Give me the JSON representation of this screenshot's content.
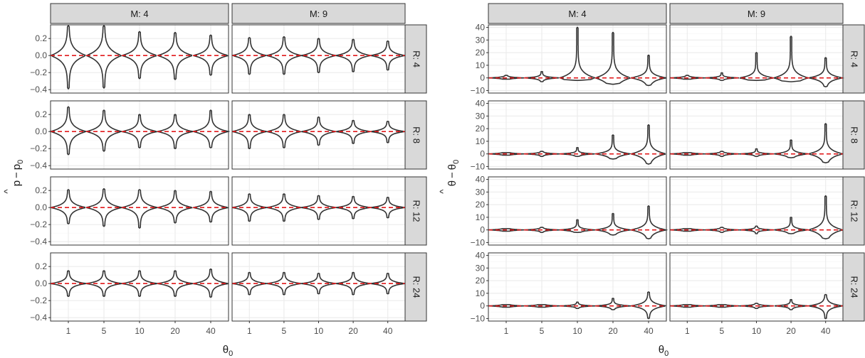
{
  "chart_data": [
    {
      "type": "violin",
      "facet_cols": [
        "M: 4",
        "M: 9"
      ],
      "facet_rows": [
        "R: 4",
        "R: 8",
        "R: 12",
        "R: 24"
      ],
      "xlabel_base": "θ",
      "xlabel_sub": "0",
      "ylabel_main": "p",
      "ylabel_hat": "^",
      "ylabel_sub": "0",
      "ylabel_op": "−",
      "categories": [
        "1",
        "5",
        "10",
        "20",
        "40"
      ],
      "yticks": [
        "0.2",
        "0.0",
        "−0.2",
        "−0.4"
      ],
      "ytick_values": [
        0.2,
        0.0,
        -0.2,
        -0.4
      ],
      "ylim": [
        -0.44,
        0.36
      ],
      "reference_line": 0,
      "colors": {
        "violin": "#333333",
        "reference": "#e0191b",
        "strip": "#d9d9d9",
        "grid": "#ebebeb"
      },
      "violins": [
        [
          [
            [
              -0.39,
              0.35
            ],
            [
              -0.38,
              0.35
            ],
            [
              -0.27,
              0.28
            ],
            [
              -0.28,
              0.27
            ],
            [
              -0.23,
              0.24
            ]
          ],
          [
            [
              -0.22,
              0.21
            ],
            [
              -0.22,
              0.22
            ],
            [
              -0.2,
              0.2
            ],
            [
              -0.19,
              0.19
            ],
            [
              -0.17,
              0.17
            ]
          ]
        ],
        [
          [
            [
              -0.27,
              0.29
            ],
            [
              -0.23,
              0.25
            ],
            [
              -0.19,
              0.2
            ],
            [
              -0.2,
              0.2
            ],
            [
              -0.19,
              0.25
            ]
          ],
          [
            [
              -0.2,
              0.2
            ],
            [
              -0.19,
              0.2
            ],
            [
              -0.16,
              0.17
            ],
            [
              -0.14,
              0.13
            ],
            [
              -0.13,
              0.12
            ]
          ]
        ],
        [
          [
            [
              -0.19,
              0.21
            ],
            [
              -0.22,
              0.22
            ],
            [
              -0.24,
              0.21
            ],
            [
              -0.18,
              0.2
            ],
            [
              -0.17,
              0.19
            ]
          ],
          [
            [
              -0.16,
              0.16
            ],
            [
              -0.16,
              0.16
            ],
            [
              -0.14,
              0.14
            ],
            [
              -0.13,
              0.13
            ],
            [
              -0.12,
              0.12
            ]
          ]
        ],
        [
          [
            [
              -0.15,
              0.15
            ],
            [
              -0.15,
              0.15
            ],
            [
              -0.15,
              0.15
            ],
            [
              -0.15,
              0.15
            ],
            [
              -0.16,
              0.17
            ]
          ],
          [
            [
              -0.13,
              0.13
            ],
            [
              -0.13,
              0.13
            ],
            [
              -0.12,
              0.12
            ],
            [
              -0.13,
              0.13
            ],
            [
              -0.12,
              0.12
            ]
          ]
        ]
      ]
    },
    {
      "type": "violin",
      "facet_cols": [
        "M: 4",
        "M: 9"
      ],
      "facet_rows": [
        "R: 4",
        "R: 8",
        "R: 12",
        "R: 24"
      ],
      "xlabel_base": "θ",
      "xlabel_sub": "0",
      "ylabel_main": "θ",
      "ylabel_hat": "^",
      "ylabel_sub": "0",
      "ylabel_op": "−",
      "categories": [
        "1",
        "5",
        "10",
        "20",
        "40"
      ],
      "yticks": [
        "40",
        "30",
        "20",
        "10",
        "0",
        "−10"
      ],
      "ytick_values": [
        40,
        30,
        20,
        10,
        0,
        -10
      ],
      "ylim": [
        -12,
        42
      ],
      "reference_line": 0,
      "colors": {
        "violin": "#333333",
        "reference": "#e0191b",
        "strip": "#d9d9d9",
        "grid": "#ebebeb"
      },
      "violins": [
        [
          [
            [
              -1,
              2
            ],
            [
              -3,
              5
            ],
            [
              -2,
              40
            ],
            [
              -5,
              36
            ],
            [
              -6,
              18
            ]
          ],
          [
            [
              -1,
              2
            ],
            [
              -2,
              4
            ],
            [
              -2,
              20
            ],
            [
              -3,
              33
            ],
            [
              -7,
              16
            ]
          ]
        ],
        [
          [
            [
              -1,
              1
            ],
            [
              -2,
              2
            ],
            [
              -2,
              5
            ],
            [
              -4,
              15
            ],
            [
              -8,
              23
            ]
          ],
          [
            [
              -1,
              1
            ],
            [
              -2,
              2
            ],
            [
              -2,
              4
            ],
            [
              -3,
              11
            ],
            [
              -7,
              24
            ]
          ]
        ],
        [
          [
            [
              -1,
              1
            ],
            [
              -2,
              2
            ],
            [
              -2,
              8
            ],
            [
              -4,
              13
            ],
            [
              -7,
              19
            ]
          ],
          [
            [
              -1,
              1
            ],
            [
              -2,
              2
            ],
            [
              -3,
              3
            ],
            [
              -3,
              10
            ],
            [
              -7,
              27
            ]
          ]
        ],
        [
          [
            [
              -1,
              1
            ],
            [
              -1,
              1
            ],
            [
              -2,
              3
            ],
            [
              -3,
              6
            ],
            [
              -10,
              11
            ]
          ],
          [
            [
              -1,
              1
            ],
            [
              -1,
              1
            ],
            [
              -2,
              2
            ],
            [
              -3,
              5
            ],
            [
              -10,
              9
            ]
          ]
        ]
      ]
    }
  ]
}
